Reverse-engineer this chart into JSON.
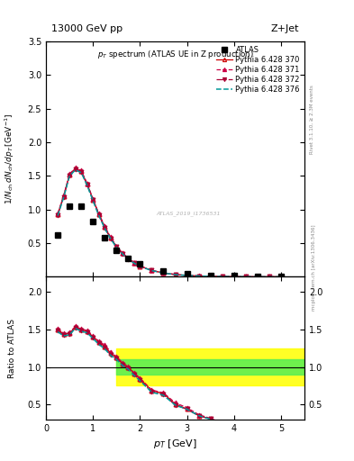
{
  "title_top": "13000 GeV pp",
  "title_right": "Z+Jet",
  "plot_title": "p_{T} spectrum (ATLAS UE in Z production)",
  "ylabel_main": "1/N_{ch} dN_{ch}/dp_{T} [GeV^{-1}]",
  "ylabel_ratio": "Ratio to ATLAS",
  "xlabel": "p_{T} [GeV]",
  "right_label_top": "Rivet 3.1.10, ≥ 2.3M events",
  "right_label_bottom": "mcplots.cern.ch [arXiv:1306.3436]",
  "watermark": "ATLAS_2019_I1736531",
  "atlas_data": {
    "x": [
      0.25,
      0.5,
      0.75,
      1.0,
      1.25,
      1.5,
      1.75,
      2.0,
      2.5,
      3.0,
      3.5,
      4.0,
      4.5,
      5.0
    ],
    "y": [
      0.62,
      1.05,
      1.05,
      0.82,
      0.58,
      0.4,
      0.27,
      0.19,
      0.09,
      0.048,
      0.026,
      0.014,
      0.008,
      0.004
    ]
  },
  "pythia_370": {
    "x": [
      0.25,
      0.375,
      0.5,
      0.625,
      0.75,
      0.875,
      1.0,
      1.125,
      1.25,
      1.375,
      1.5,
      1.625,
      1.75,
      1.875,
      2.0,
      2.25,
      2.5,
      2.75,
      3.0,
      3.25,
      3.5,
      3.75,
      4.0,
      4.25,
      4.5,
      4.75,
      5.0
    ],
    "y": [
      0.93,
      1.2,
      1.52,
      1.61,
      1.57,
      1.38,
      1.15,
      0.93,
      0.74,
      0.58,
      0.45,
      0.35,
      0.27,
      0.21,
      0.16,
      0.096,
      0.058,
      0.035,
      0.021,
      0.013,
      0.008,
      0.005,
      0.003,
      0.002,
      0.0013,
      0.0008,
      0.0005
    ],
    "color": "#cc0000",
    "linestyle": "-",
    "marker": "^",
    "fillstyle": "none",
    "label": "Pythia 6.428 370"
  },
  "pythia_371": {
    "x": [
      0.25,
      0.375,
      0.5,
      0.625,
      0.75,
      0.875,
      1.0,
      1.125,
      1.25,
      1.375,
      1.5,
      1.625,
      1.75,
      1.875,
      2.0,
      2.25,
      2.5,
      2.75,
      3.0,
      3.25,
      3.5,
      3.75,
      4.0,
      4.25,
      4.5,
      4.75,
      5.0
    ],
    "y": [
      0.94,
      1.21,
      1.53,
      1.62,
      1.58,
      1.39,
      1.16,
      0.94,
      0.75,
      0.59,
      0.455,
      0.355,
      0.272,
      0.212,
      0.162,
      0.097,
      0.059,
      0.036,
      0.022,
      0.0135,
      0.0082,
      0.0051,
      0.0031,
      0.002,
      0.0013,
      0.0008,
      0.00052
    ],
    "color": "#cc0044",
    "linestyle": "--",
    "marker": "^",
    "fillstyle": "full",
    "label": "Pythia 6.428 371"
  },
  "pythia_372": {
    "x": [
      0.25,
      0.375,
      0.5,
      0.625,
      0.75,
      0.875,
      1.0,
      1.125,
      1.25,
      1.375,
      1.5,
      1.625,
      1.75,
      1.875,
      2.0,
      2.25,
      2.5,
      2.75,
      3.0,
      3.25,
      3.5,
      3.75,
      4.0,
      4.25,
      4.5,
      4.75,
      5.0
    ],
    "y": [
      0.92,
      1.19,
      1.51,
      1.6,
      1.56,
      1.37,
      1.14,
      0.92,
      0.73,
      0.57,
      0.445,
      0.345,
      0.265,
      0.206,
      0.157,
      0.094,
      0.057,
      0.034,
      0.021,
      0.013,
      0.008,
      0.005,
      0.003,
      0.002,
      0.0013,
      0.00082,
      0.00052
    ],
    "color": "#aa0033",
    "linestyle": "-.",
    "marker": "v",
    "fillstyle": "full",
    "label": "Pythia 6.428 372"
  },
  "pythia_376": {
    "x": [
      0.25,
      0.375,
      0.5,
      0.625,
      0.75,
      0.875,
      1.0,
      1.125,
      1.25,
      1.375,
      1.5,
      1.625,
      1.75,
      1.875,
      2.0,
      2.25,
      2.5,
      2.75,
      3.0,
      3.25,
      3.5,
      3.75,
      4.0,
      4.25,
      4.5,
      4.75,
      5.0
    ],
    "y": [
      0.91,
      1.18,
      1.5,
      1.59,
      1.55,
      1.36,
      1.13,
      0.91,
      0.72,
      0.565,
      0.44,
      0.342,
      0.262,
      0.204,
      0.155,
      0.093,
      0.056,
      0.034,
      0.021,
      0.013,
      0.0079,
      0.0049,
      0.003,
      0.0019,
      0.0012,
      0.00077,
      0.00049
    ],
    "color": "#009999",
    "linestyle": "--",
    "marker": null,
    "fillstyle": "full",
    "label": "Pythia 6.428 376"
  },
  "ylim_main": [
    0.0,
    3.5
  ],
  "ylim_ratio": [
    0.3,
    2.2
  ],
  "xlim": [
    0.0,
    5.5
  ],
  "ratio_yticks": [
    0.5,
    1.0,
    1.5,
    2.0
  ],
  "main_yticks": [
    0.5,
    1.0,
    1.5,
    2.0,
    2.5,
    3.0,
    3.5
  ],
  "xticks": [
    0,
    1,
    2,
    3,
    4,
    5
  ],
  "ratio_band_green_low": 0.9,
  "ratio_band_green_high": 1.1,
  "ratio_band_yellow_low": 0.75,
  "ratio_band_yellow_high": 1.25,
  "ratio_band_xstart": 1.5
}
